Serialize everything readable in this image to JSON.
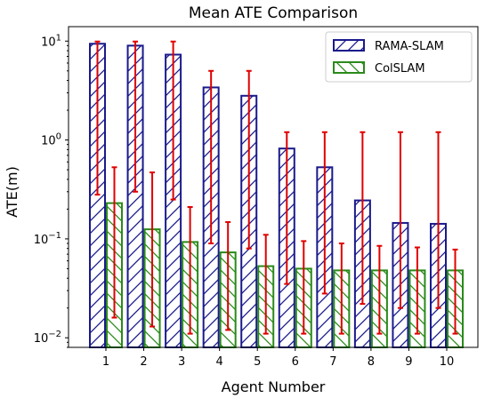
{
  "chart_data": {
    "type": "bar",
    "title": "Mean ATE Comparison",
    "xlabel": "Agent Number",
    "ylabel": "ATE(m)",
    "yscale": "log",
    "ylim": [
      0.008,
      14
    ],
    "categories": [
      "1",
      "2",
      "3",
      "4",
      "5",
      "6",
      "7",
      "8",
      "9",
      "10"
    ],
    "y_ticks": [
      {
        "value": 0.01,
        "base": "10",
        "exp": "−2"
      },
      {
        "value": 0.1,
        "base": "10",
        "exp": "−1"
      },
      {
        "value": 1,
        "base": "10",
        "exp": "0"
      },
      {
        "value": 10,
        "base": "10",
        "exp": "1"
      }
    ],
    "legend_position": "top-right",
    "series": [
      {
        "name": "RAMA-SLAM",
        "color": "#1a1a8c",
        "hatch": "forward-diagonal",
        "values": [
          9.4,
          9.0,
          7.3,
          3.4,
          2.8,
          0.82,
          0.53,
          0.245,
          0.145,
          0.142
        ],
        "err_low": [
          0.28,
          0.3,
          0.25,
          0.09,
          0.08,
          0.035,
          0.028,
          0.022,
          0.02,
          0.02
        ],
        "err_high": [
          9.9,
          9.9,
          9.9,
          5.0,
          5.0,
          1.2,
          1.2,
          1.2,
          1.2,
          1.2
        ]
      },
      {
        "name": "ColSLAM",
        "color": "#2a8a1a",
        "hatch": "backward-diagonal",
        "values": [
          0.23,
          0.125,
          0.093,
          0.073,
          0.053,
          0.05,
          0.048,
          0.048,
          0.048,
          0.048
        ],
        "err_low": [
          0.016,
          0.013,
          0.011,
          0.012,
          0.011,
          0.011,
          0.011,
          0.011,
          0.011,
          0.011
        ],
        "err_high": [
          0.53,
          0.47,
          0.21,
          0.148,
          0.11,
          0.095,
          0.09,
          0.085,
          0.082,
          0.078
        ]
      }
    ],
    "error_bar_color": "#e00000",
    "grid": false
  }
}
